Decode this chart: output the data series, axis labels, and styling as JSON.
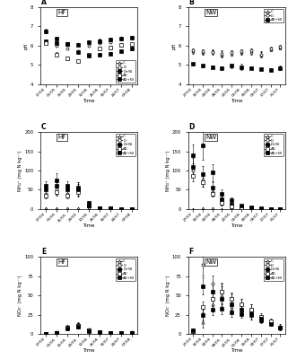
{
  "panel_A": {
    "title": "HF",
    "label": "A",
    "ylabel": "pH",
    "ylim": [
      4,
      8
    ],
    "yticks": [
      4,
      5,
      6,
      7,
      8
    ],
    "xtick_labels": [
      "17/04",
      "05/05",
      "13/05",
      "29/05",
      "12/06",
      "26/06",
      "10/07",
      "24/07",
      "07/08"
    ],
    "series": {
      "C": [
        6.25,
        6.2,
        6.15,
        6.1,
        6.25,
        6.3,
        6.35,
        6.4,
        6.45
      ],
      "D": [
        6.2,
        6.0,
        5.85,
        5.7,
        6.0,
        6.15,
        6.2,
        6.35,
        6.4
      ],
      "D+NI": [
        6.25,
        6.15,
        6.1,
        6.05,
        6.2,
        6.25,
        6.3,
        6.35,
        6.4
      ],
      "AD": [
        6.15,
        5.55,
        5.35,
        5.2,
        5.55,
        5.85,
        5.9,
        6.05,
        6.1
      ],
      "AD+NI": [
        6.75,
        6.35,
        6.1,
        5.65,
        5.5,
        5.55,
        5.6,
        5.7,
        5.85
      ]
    },
    "errors": {
      "C": [
        0.04,
        0.04,
        0.04,
        0.04,
        0.04,
        0.04,
        0.04,
        0.04,
        0.04
      ],
      "D": [
        0.06,
        0.06,
        0.06,
        0.06,
        0.06,
        0.06,
        0.06,
        0.06,
        0.06
      ],
      "D+NI": [
        0.04,
        0.04,
        0.04,
        0.04,
        0.04,
        0.04,
        0.04,
        0.04,
        0.04
      ],
      "AD": [
        0.08,
        0.1,
        0.1,
        0.1,
        0.08,
        0.08,
        0.08,
        0.08,
        0.08
      ],
      "AD+NI": [
        0.12,
        0.1,
        0.08,
        0.08,
        0.08,
        0.08,
        0.08,
        0.08,
        0.08
      ]
    }
  },
  "panel_B": {
    "title": "NW",
    "label": "B",
    "ylabel": "pH",
    "ylim": [
      4,
      8
    ],
    "yticks": [
      4,
      5,
      6,
      7,
      8
    ],
    "xtick_labels": [
      "27/03",
      "10/04",
      "24/04",
      "08/05",
      "22/05",
      "05/06",
      "19/06",
      "03/07",
      "17/07",
      "31/07"
    ],
    "series": {
      "C": [
        5.7,
        5.65,
        5.7,
        5.55,
        5.6,
        5.65,
        5.65,
        5.55,
        5.8,
        5.9
      ],
      "D": [
        5.75,
        5.7,
        5.65,
        5.6,
        5.65,
        5.7,
        5.75,
        5.55,
        5.85,
        5.95
      ],
      "AD+NI": [
        5.05,
        4.95,
        4.9,
        4.85,
        4.95,
        4.9,
        4.85,
        4.8,
        4.75,
        4.85
      ]
    },
    "errors": {
      "C": [
        0.1,
        0.1,
        0.1,
        0.15,
        0.1,
        0.1,
        0.1,
        0.12,
        0.08,
        0.08
      ],
      "D": [
        0.1,
        0.12,
        0.1,
        0.15,
        0.1,
        0.12,
        0.1,
        0.15,
        0.08,
        0.08
      ],
      "AD+NI": [
        0.08,
        0.08,
        0.08,
        0.08,
        0.1,
        0.15,
        0.08,
        0.08,
        0.08,
        0.1
      ]
    }
  },
  "panel_C": {
    "title": "HF",
    "label": "C",
    "ylabel": "NH₄⁺ (mg N kg⁻¹)",
    "ylim": [
      0,
      200
    ],
    "yticks": [
      0,
      50,
      100,
      150,
      200
    ],
    "xtick_labels": [
      "17/04",
      "01/05",
      "15/05",
      "29/05",
      "12/06",
      "26/06",
      "10/07",
      "24/07",
      "07/08"
    ],
    "series": {
      "C": [
        2,
        2,
        2,
        1,
        1,
        0.5,
        0.5,
        0.5,
        0.5
      ],
      "D": [
        40,
        50,
        40,
        55,
        12,
        2,
        1,
        0.5,
        0.5
      ],
      "D+NI": [
        50,
        60,
        50,
        55,
        15,
        3,
        1,
        0.5,
        0.5
      ],
      "AD": [
        35,
        45,
        35,
        45,
        10,
        2,
        1,
        0.5,
        0.5
      ],
      "AD+NI": [
        60,
        75,
        60,
        50,
        10,
        2,
        1,
        0.5,
        0.5
      ]
    },
    "errors": {
      "C": [
        1,
        1,
        1,
        0.5,
        0.5,
        0.3,
        0.3,
        0.3,
        0.3
      ],
      "D": [
        8,
        12,
        8,
        15,
        5,
        1,
        0.5,
        0.3,
        0.3
      ],
      "D+NI": [
        10,
        15,
        10,
        15,
        6,
        1,
        0.5,
        0.3,
        0.3
      ],
      "AD": [
        7,
        10,
        7,
        12,
        4,
        1,
        0.5,
        0.3,
        0.3
      ],
      "AD+NI": [
        12,
        18,
        12,
        15,
        4,
        1,
        0.5,
        0.3,
        0.3
      ]
    }
  },
  "panel_D": {
    "title": "NW",
    "label": "D",
    "ylabel": "NH₄⁺ (mg N kg⁻¹)",
    "ylim": [
      0,
      200
    ],
    "yticks": [
      0,
      50,
      100,
      150,
      200
    ],
    "xtick_labels": [
      "27/03",
      "10/04",
      "24/04",
      "08/05",
      "22/05",
      "05/06",
      "19/06",
      "03/07",
      "17/07",
      "31/07"
    ],
    "series": {
      "C": [
        0.5,
        1,
        1,
        0.5,
        0.5,
        0.5,
        0.5,
        0.5,
        0.5,
        0.5
      ],
      "D": [
        100,
        75,
        45,
        18,
        8,
        3,
        1,
        0.5,
        0.5,
        0.5
      ],
      "D+NI": [
        110,
        90,
        55,
        25,
        12,
        5,
        2,
        0.5,
        0.5,
        0.5
      ],
      "AD": [
        85,
        70,
        40,
        15,
        6,
        3,
        1,
        0.5,
        0.5,
        0.5
      ],
      "AD+NI": [
        140,
        165,
        95,
        40,
        22,
        8,
        4,
        1,
        0.5,
        0.5
      ]
    },
    "errors": {
      "C": [
        0.3,
        0.5,
        0.5,
        0.3,
        0.3,
        0.3,
        0.3,
        0.3,
        0.3,
        0.3
      ],
      "D": [
        18,
        18,
        12,
        8,
        4,
        1.5,
        0.5,
        0.3,
        0.3,
        0.3
      ],
      "D+NI": [
        22,
        22,
        15,
        10,
        5,
        2,
        1,
        0.3,
        0.3,
        0.3
      ],
      "AD": [
        12,
        12,
        8,
        6,
        3,
        1.5,
        0.5,
        0.3,
        0.3,
        0.3
      ],
      "AD+NI": [
        28,
        38,
        22,
        12,
        7,
        3,
        1.5,
        0.5,
        0.3,
        0.3
      ]
    }
  },
  "panel_E": {
    "title": "HF",
    "label": "E",
    "ylabel": "NO₃⁻ (mg N kg⁻¹)",
    "ylim": [
      0,
      100
    ],
    "yticks": [
      0,
      25,
      50,
      75,
      100
    ],
    "xtick_labels": [
      "17/04",
      "01/05",
      "15/05",
      "29/05",
      "12/06",
      "26/06",
      "10/07",
      "24/07",
      "07/08"
    ],
    "series": {
      "C": [
        0.5,
        1.5,
        8,
        10,
        5,
        2,
        1,
        1,
        1
      ],
      "D": [
        0.5,
        2,
        9,
        11,
        6,
        2.5,
        1,
        1,
        2
      ],
      "D+NI": [
        0.5,
        1.5,
        8.5,
        10.5,
        5,
        2,
        1,
        1,
        1.5
      ],
      "AD": [
        0.5,
        1.5,
        8,
        10,
        5,
        2,
        1,
        1,
        1
      ],
      "AD+NI": [
        0.5,
        1.5,
        7,
        9,
        4,
        2,
        1,
        1,
        1
      ]
    },
    "errors": {
      "C": [
        0.3,
        0.8,
        2.5,
        3.5,
        1.5,
        0.8,
        0.3,
        0.3,
        0.3
      ],
      "D": [
        0.3,
        0.8,
        2.5,
        4,
        1.5,
        0.8,
        0.3,
        0.3,
        0.8
      ],
      "D+NI": [
        0.3,
        0.8,
        2.5,
        3.5,
        1.5,
        0.8,
        0.3,
        0.3,
        0.3
      ],
      "AD": [
        0.3,
        0.8,
        2.5,
        3.5,
        1.5,
        0.8,
        0.3,
        0.3,
        0.3
      ],
      "AD+NI": [
        0.3,
        0.8,
        2,
        2.5,
        1.2,
        0.8,
        0.3,
        0.3,
        0.3
      ]
    }
  },
  "panel_F": {
    "title": "NW",
    "label": "F",
    "ylabel": "NO₃⁻ (mg N kg⁻¹)",
    "ylim": [
      0,
      100
    ],
    "yticks": [
      0,
      25,
      50,
      75,
      100
    ],
    "xtick_labels": [
      "27/03",
      "10/04",
      "24/04",
      "08/05",
      "22/05",
      "05/06",
      "19/06",
      "03/07",
      "17/07",
      "31/07"
    ],
    "series": {
      "C": [
        3,
        15,
        38,
        50,
        35,
        30,
        25,
        20,
        15,
        10
      ],
      "D": [
        5,
        90,
        65,
        55,
        45,
        38,
        32,
        20,
        15,
        8
      ],
      "D+NI": [
        4,
        62,
        55,
        45,
        38,
        32,
        28,
        18,
        14,
        8
      ],
      "AD": [
        3,
        35,
        45,
        55,
        45,
        38,
        32,
        22,
        16,
        8
      ],
      "AD+NI": [
        5,
        25,
        32,
        33,
        28,
        26,
        24,
        20,
        13,
        8
      ]
    },
    "errors": {
      "C": [
        1.5,
        7,
        9,
        12,
        8,
        7,
        6,
        5,
        4,
        3
      ],
      "D": [
        2,
        14,
        11,
        10,
        8,
        7,
        6,
        5,
        4,
        3
      ],
      "D+NI": [
        1.5,
        11,
        9,
        9,
        7,
        6,
        5,
        4,
        3,
        2.5
      ],
      "AD": [
        1.5,
        7,
        9,
        11,
        9,
        7,
        6,
        5,
        4,
        3
      ],
      "AD+NI": [
        2,
        7,
        7,
        7,
        6,
        5.5,
        5,
        4.5,
        3,
        2.5
      ]
    }
  },
  "series_styles": {
    "C": {
      "marker": "^",
      "mfc": "white",
      "mec": "black",
      "color": "black"
    },
    "D": {
      "marker": "o",
      "mfc": "white",
      "mec": "black",
      "color": "black"
    },
    "D+NI": {
      "marker": "s",
      "mfc": "black",
      "mec": "black",
      "color": "black"
    },
    "AD": {
      "marker": "s",
      "mfc": "white",
      "mec": "black",
      "color": "black"
    },
    "AD+NI": {
      "marker": "s",
      "mfc": "black",
      "mec": "black",
      "color": "black"
    }
  },
  "legend_positions": {
    "panel_A": "lower right",
    "panel_B": "upper right",
    "panel_C": "upper right",
    "panel_D": "upper right",
    "panel_E": "upper right",
    "panel_F": "upper right"
  }
}
